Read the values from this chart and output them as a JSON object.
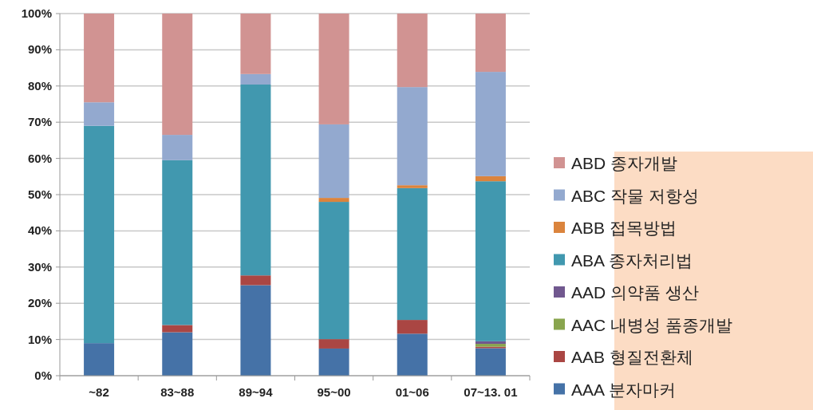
{
  "chart_data": {
    "type": "bar",
    "stacked": true,
    "grid": "y",
    "legend": "bottom right",
    "categories": [
      "~82",
      "83~88",
      "89~94",
      "95~00",
      "01~06",
      "07~13. 01"
    ],
    "ylim": [
      0,
      100
    ],
    "yticks": [
      {
        "value": 0,
        "label": "0%"
      },
      {
        "value": 10,
        "label": "10%"
      },
      {
        "value": 20,
        "label": "20%"
      },
      {
        "value": 30,
        "label": "30%"
      },
      {
        "value": 40,
        "label": "40%"
      },
      {
        "value": 50,
        "label": "50%"
      },
      {
        "value": 60,
        "label": "60%"
      },
      {
        "value": 70,
        "label": "70%"
      },
      {
        "value": 80,
        "label": "80%"
      },
      {
        "value": 90,
        "label": "90%"
      },
      {
        "value": 100,
        "label": "100%"
      }
    ],
    "series": [
      {
        "name": "AAA 분자마커",
        "color": "#4572a7",
        "values": [
          9,
          12,
          25,
          7.5,
          11.6,
          7.6
        ]
      },
      {
        "name": "AAB 형질전환체",
        "color": "#aa4643",
        "values": [
          0,
          2,
          2.7,
          2.6,
          3.8,
          0.4
        ]
      },
      {
        "name": "AAC 내병성 품종개발",
        "color": "#89a54e",
        "values": [
          0,
          0,
          0,
          0,
          0,
          0.8
        ]
      },
      {
        "name": "AAD 의약품 생산",
        "color": "#71588f",
        "values": [
          0,
          0,
          0,
          0,
          0,
          0.7
        ]
      },
      {
        "name": "ABA 종자처리법",
        "color": "#4198af",
        "values": [
          60,
          45.5,
          52.7,
          37.9,
          36.4,
          44.2
        ]
      },
      {
        "name": "ABB 접목방법",
        "color": "#db843d",
        "values": [
          0,
          0,
          0,
          1.1,
          0.8,
          1.4
        ]
      },
      {
        "name": "ABC 작물 저항성",
        "color": "#93a9cf",
        "values": [
          6.5,
          7,
          2.9,
          20.3,
          27.1,
          28.8
        ]
      },
      {
        "name": "ABD 종자개발",
        "color": "#d19392",
        "values": [
          24.5,
          33.5,
          16.7,
          30.6,
          20.3,
          16.1
        ]
      }
    ]
  }
}
